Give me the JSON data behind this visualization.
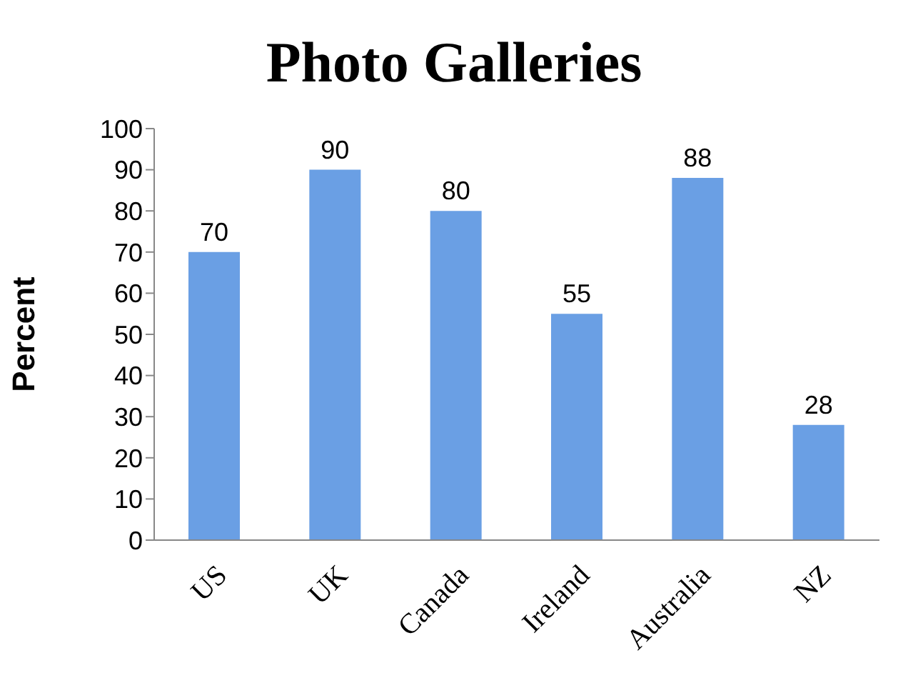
{
  "chart_data": {
    "type": "bar",
    "title": "Photo Galleries",
    "ylabel": "Percent",
    "categories": [
      "US",
      "UK",
      "Canada",
      "Ireland",
      "Australia",
      "NZ"
    ],
    "values": [
      70,
      90,
      80,
      55,
      88,
      28
    ],
    "color": "#6a9fe4",
    "ylim": [
      0,
      100
    ],
    "yticks": [
      0,
      10,
      20,
      30,
      40,
      50,
      60,
      70,
      80,
      90,
      100
    ],
    "grid": false,
    "data_labels": true
  }
}
